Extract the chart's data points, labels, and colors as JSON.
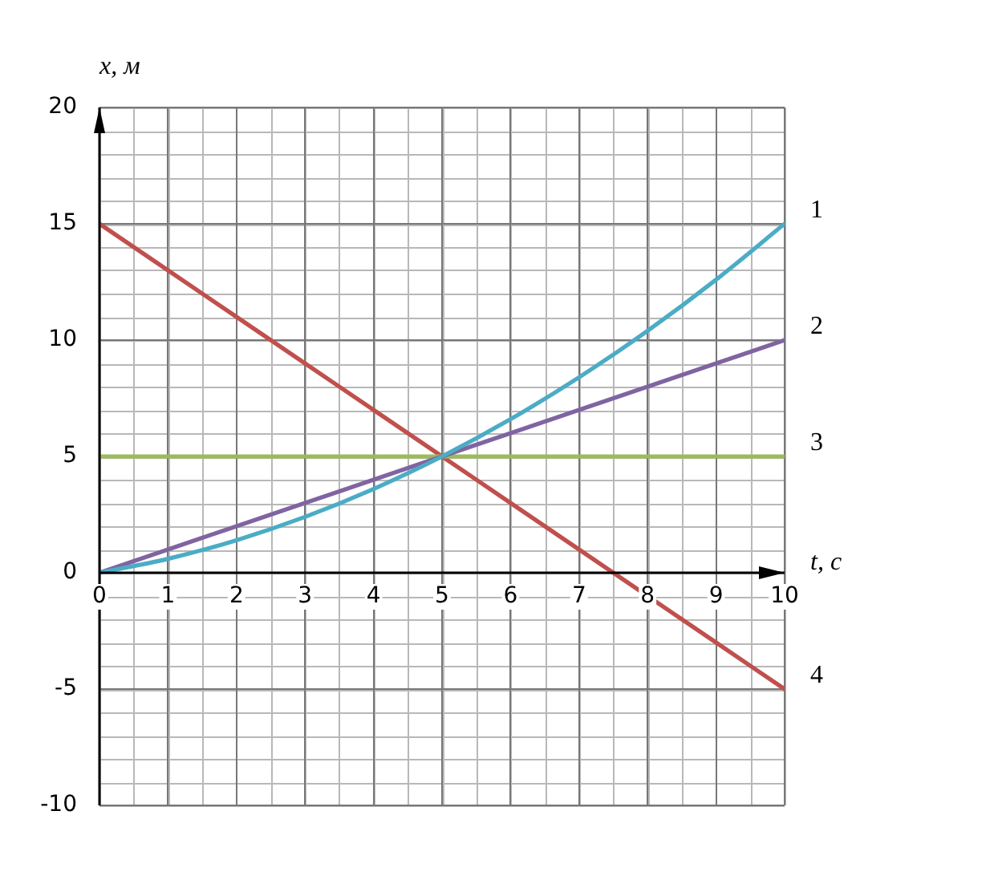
{
  "chart_data": {
    "type": "line",
    "xlabel": "t, c",
    "ylabel": "x, м",
    "x": [
      0,
      1,
      2,
      3,
      4,
      5,
      6,
      7,
      8,
      9,
      10
    ],
    "series": [
      {
        "name": "1",
        "color": "#4bacc6",
        "values": [
          0,
          0.6,
          1.4,
          2.4,
          3.6,
          5,
          6.6,
          8.4,
          10.4,
          12.6,
          15
        ]
      },
      {
        "name": "2",
        "color": "#8064a2",
        "values": [
          0,
          1,
          2,
          3,
          4,
          5,
          6,
          7,
          8,
          9,
          10
        ]
      },
      {
        "name": "3",
        "color": "#9bbb59",
        "values": [
          5,
          5,
          5,
          5,
          5,
          5,
          5,
          5,
          5,
          5,
          5
        ]
      },
      {
        "name": "4",
        "color": "#c0504d",
        "values": [
          15,
          13,
          11,
          9,
          7,
          5,
          3,
          1,
          -1,
          -3,
          -5
        ]
      }
    ],
    "xlim": [
      0,
      10
    ],
    "ylim": [
      -10,
      20
    ],
    "xticks": [
      0,
      1,
      2,
      3,
      4,
      5,
      6,
      7,
      8,
      9,
      10
    ],
    "yticks": [
      -10,
      -5,
      0,
      5,
      10,
      15,
      20
    ],
    "grid": true,
    "marker": "none",
    "line_style": "solid",
    "legend": false
  }
}
